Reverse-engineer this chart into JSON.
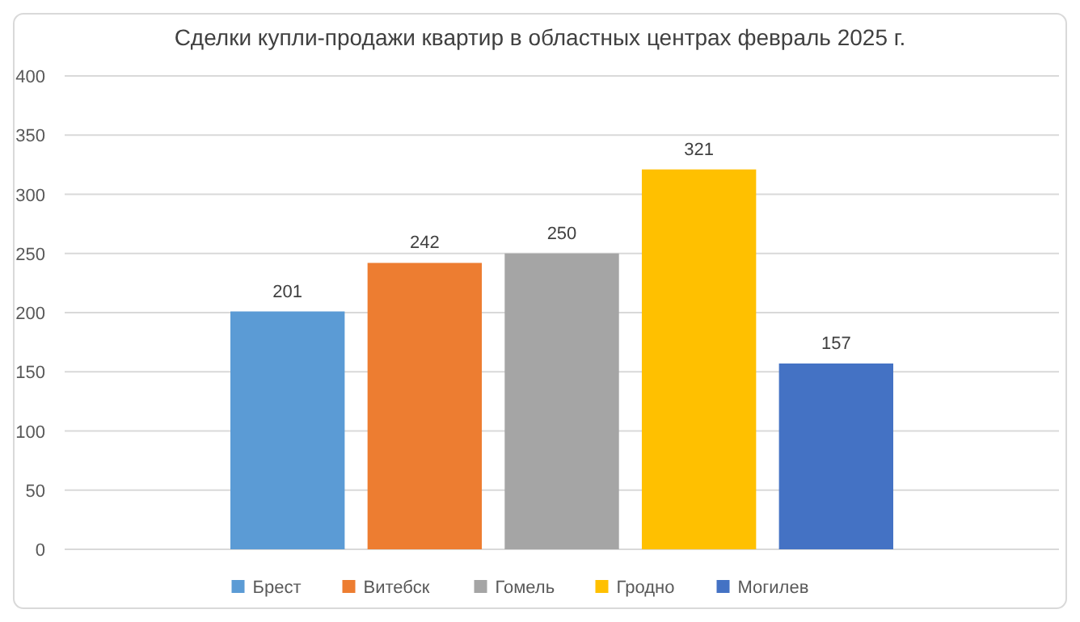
{
  "chart_data": {
    "type": "bar",
    "title": "Сделки купли-продажи квартир в областных центрах февраль 2025 г.",
    "categories": [
      null
    ],
    "series": [
      {
        "name": "Брест",
        "color": "#5b9bd5",
        "values": [
          201
        ]
      },
      {
        "name": "Витебск",
        "color": "#ed7d31",
        "values": [
          242
        ]
      },
      {
        "name": "Гомель",
        "color": "#a5a5a5",
        "values": [
          250
        ]
      },
      {
        "name": "Гродно",
        "color": "#ffc000",
        "values": [
          321
        ]
      },
      {
        "name": "Могилев",
        "color": "#4472c4",
        "values": [
          157
        ]
      }
    ],
    "ylim": [
      0,
      400
    ],
    "yticks": [
      0,
      50,
      100,
      150,
      200,
      250,
      300,
      350,
      400
    ],
    "grid": "y",
    "legend": "bottom",
    "data_labels": true
  }
}
